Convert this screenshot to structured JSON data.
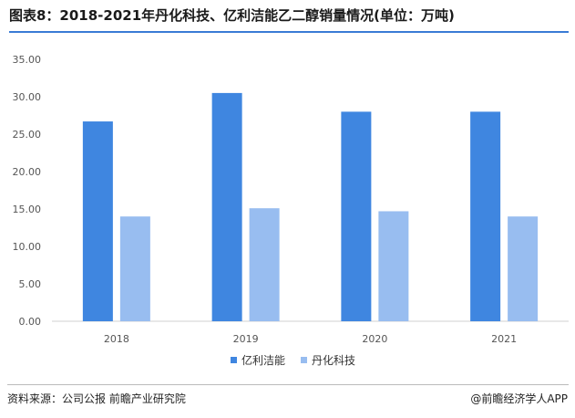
{
  "title": "图表8：2018-2021年丹化科技、亿利洁能乙二醇销量情况(单位：万吨)",
  "source": "资料来源：公司公报  前瞻产业研究院",
  "brand": "@前瞻经济学人APP",
  "colors": {
    "accent": "#3a7bd5",
    "series1": "#3f86e0",
    "series2": "#98bdf0"
  },
  "chart_data": {
    "type": "bar",
    "categories": [
      "2018",
      "2019",
      "2020",
      "2021"
    ],
    "series": [
      {
        "name": "亿利洁能",
        "values": [
          26.7,
          30.5,
          28.0,
          28.0
        ]
      },
      {
        "name": "丹化科技",
        "values": [
          14.0,
          15.1,
          14.7,
          14.0
        ]
      }
    ],
    "ylim": [
      0,
      35
    ],
    "yticks": [
      "0.00",
      "5.00",
      "10.00",
      "15.00",
      "20.00",
      "25.00",
      "30.00",
      "35.00"
    ],
    "grid": false,
    "legend": "bottom-center"
  }
}
